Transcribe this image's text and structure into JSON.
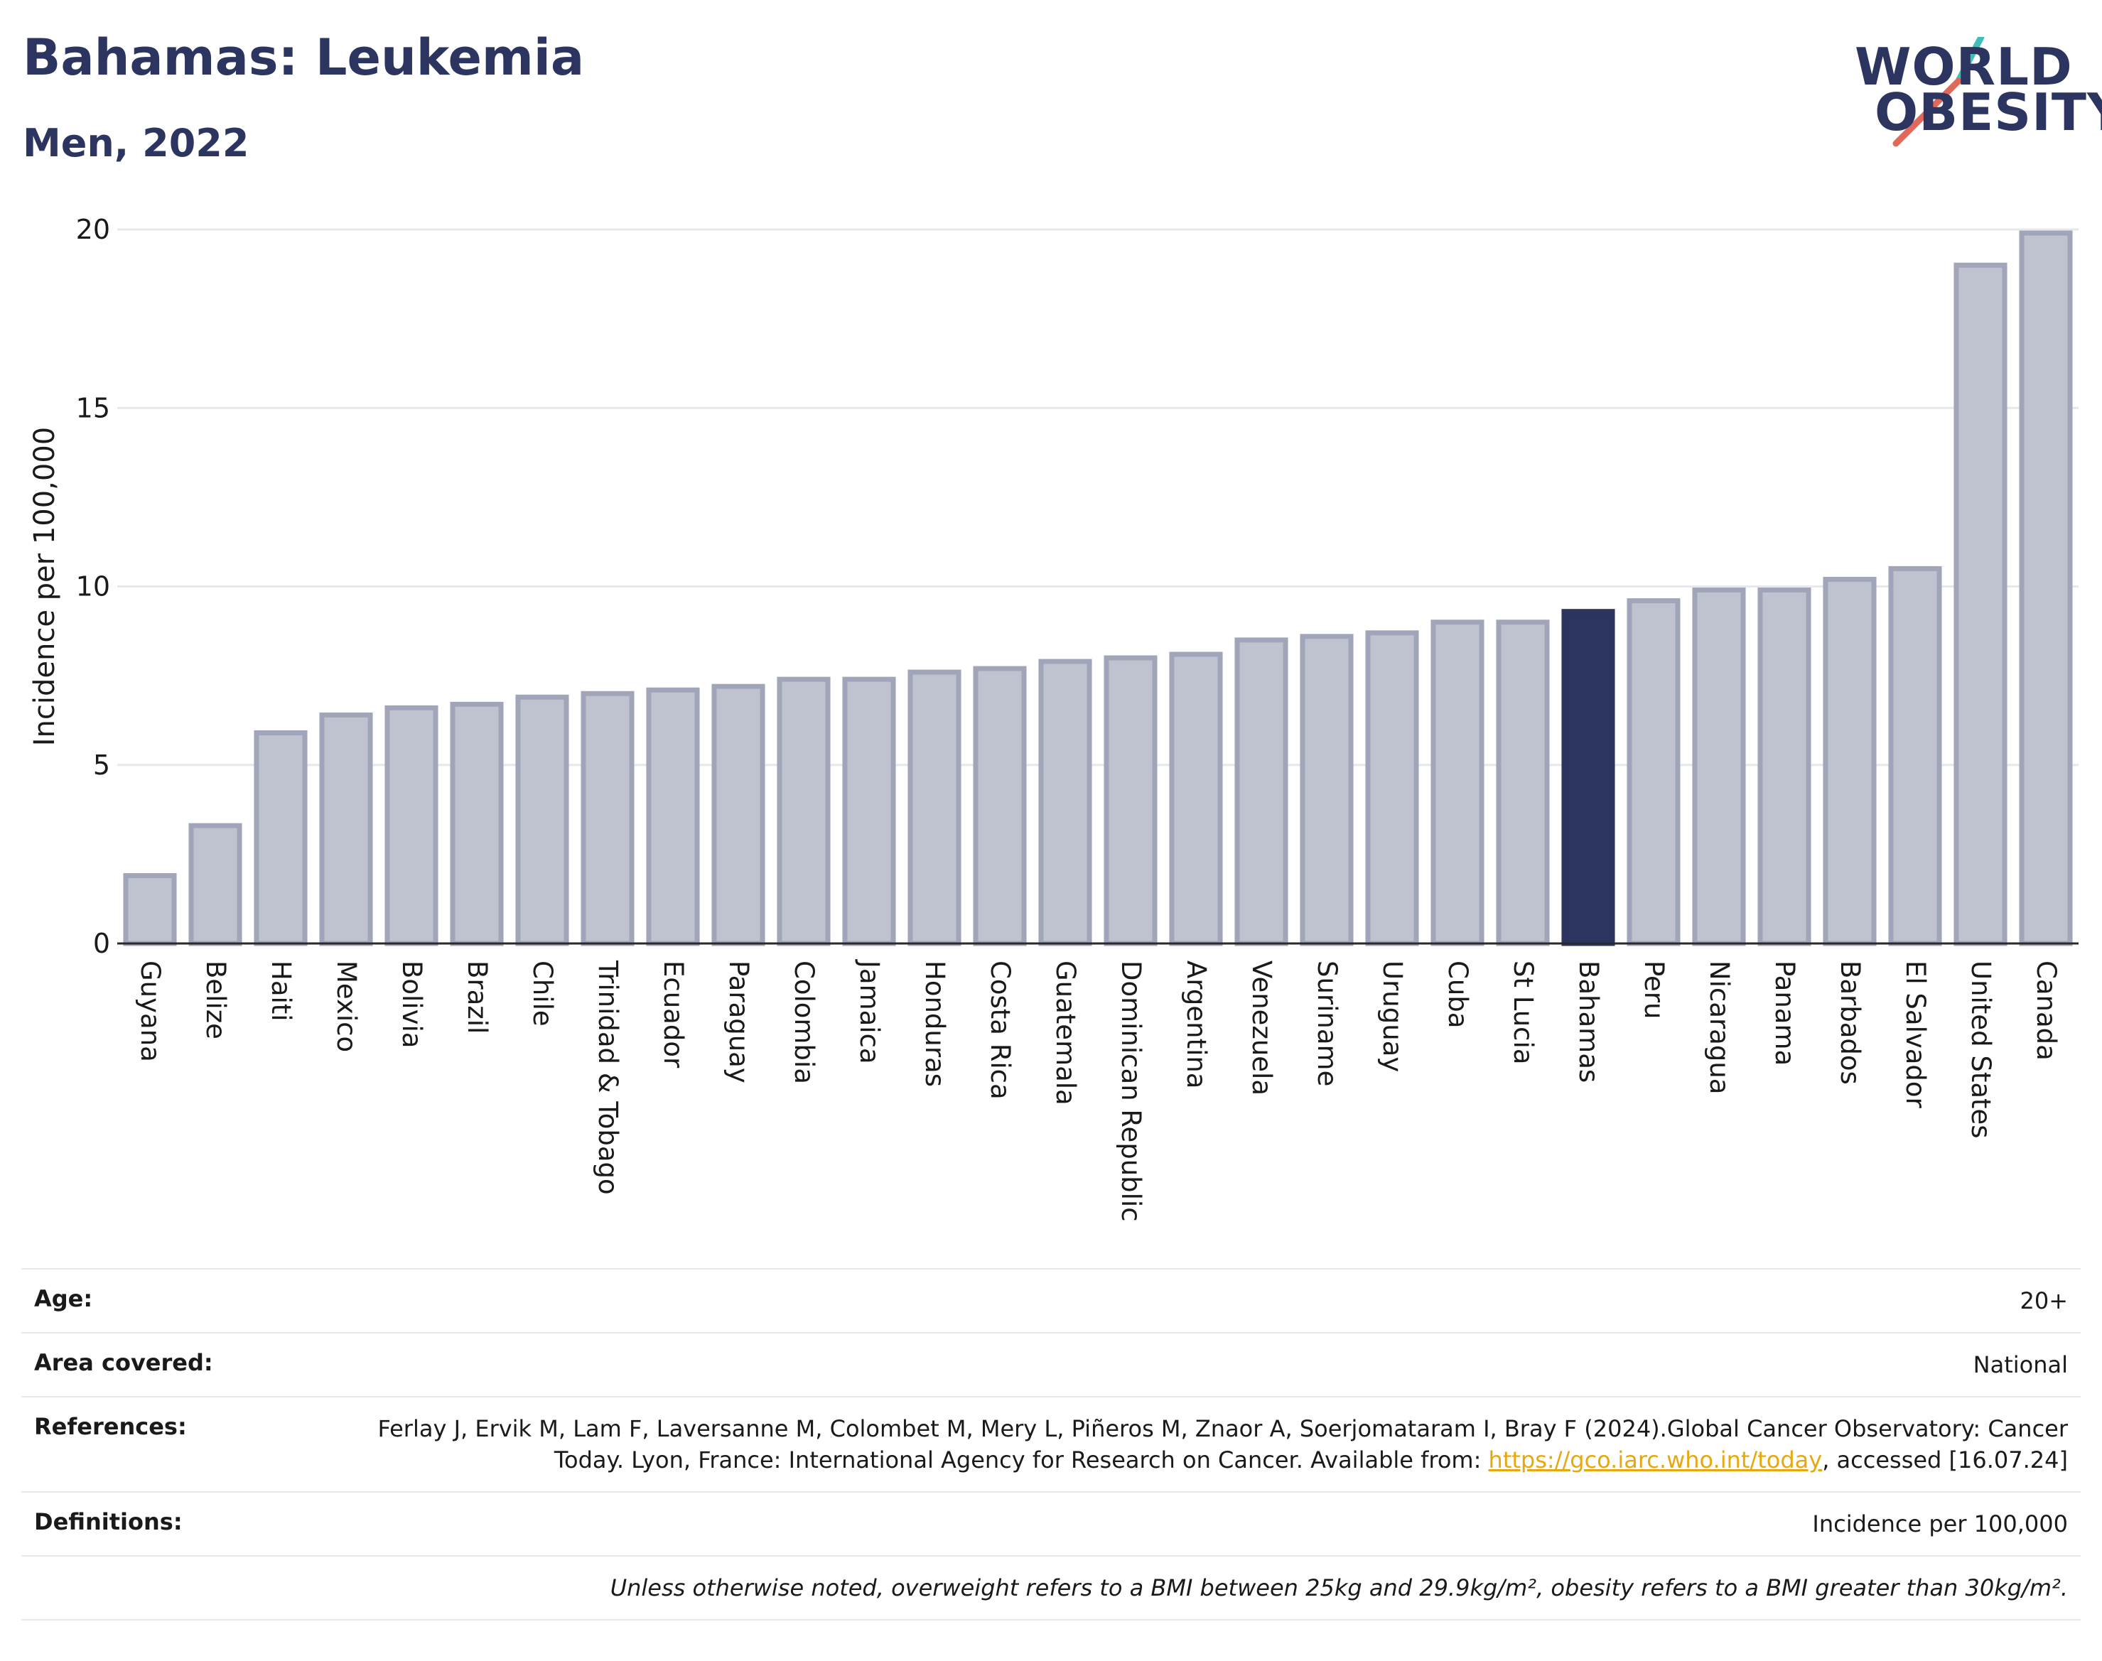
{
  "header": {
    "title": "Bahamas: Leukemia",
    "subtitle": "Men, 2022"
  },
  "logo": {
    "line1": "WORLD",
    "line2": "OBESITY",
    "accent_colors": [
      "#3fbfb8",
      "#e2685a"
    ],
    "text_color": "#2b355f"
  },
  "colors": {
    "highlight": "#2b355f",
    "bar_fill": "#bfc3d0",
    "bar_stroke": "#a0a5ba",
    "grid": "#e6e8ee",
    "link": "#e6a80f"
  },
  "chart_data": {
    "type": "bar",
    "ylabel": "Incidence per 100,000",
    "ylim": [
      0,
      20
    ],
    "yticks": [
      0,
      5,
      10,
      15,
      20
    ],
    "grid": true,
    "highlight": "Bahamas",
    "categories": [
      "Guyana",
      "Belize",
      "Haiti",
      "Mexico",
      "Bolivia",
      "Brazil",
      "Chile",
      "Trinidad & Tobago",
      "Ecuador",
      "Paraguay",
      "Colombia",
      "Jamaica",
      "Honduras",
      "Costa Rica",
      "Guatemala",
      "Dominican Republic",
      "Argentina",
      "Venezuela",
      "Suriname",
      "Uruguay",
      "Cuba",
      "St Lucia",
      "Bahamas",
      "Peru",
      "Nicaragua",
      "Panama",
      "Barbados",
      "El Salvador",
      "United States",
      "Canada"
    ],
    "values": [
      1.9,
      3.3,
      5.9,
      6.4,
      6.6,
      6.7,
      6.9,
      7.0,
      7.1,
      7.2,
      7.4,
      7.4,
      7.6,
      7.7,
      7.9,
      8.0,
      8.1,
      8.5,
      8.6,
      8.7,
      9.0,
      9.0,
      9.3,
      9.6,
      9.9,
      9.9,
      10.2,
      10.5,
      19.0,
      19.9
    ]
  },
  "info": {
    "age_label": "Age:",
    "age_value": "20+",
    "area_label": "Area covered:",
    "area_value": "National",
    "references_label": "References:",
    "references_text_1": "Ferlay J, Ervik M, Lam F, Laversanne M, Colombet M, Mery L, Piñeros M, Znaor A, Soerjomataram I, Bray F (2024).Global Cancer Observatory: Cancer Today. Lyon, France: International Agency for Research on Cancer. Available from: ",
    "references_link": "https://gco.iarc.who.int/today",
    "references_text_2": ", accessed [16.07.24]",
    "definitions_label": "Definitions:",
    "definitions_value": "Incidence per 100,000",
    "note": "Unless otherwise noted, overweight refers to a BMI between 25kg and 29.9kg/m², obesity refers to a BMI greater than 30kg/m²."
  }
}
